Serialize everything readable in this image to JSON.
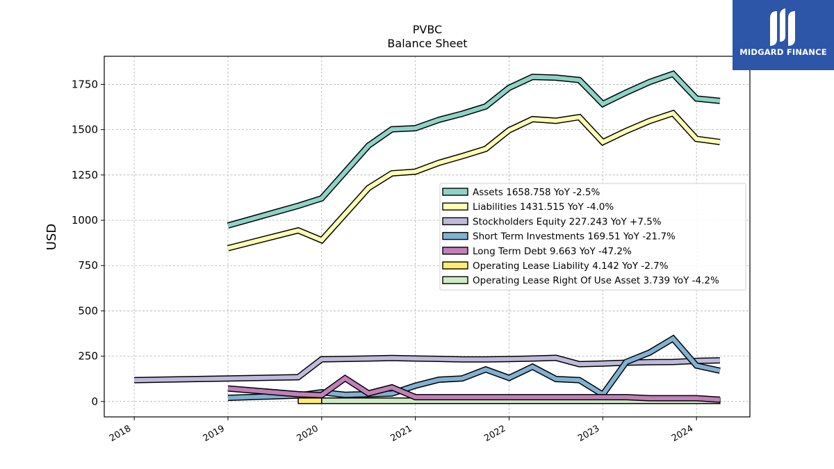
{
  "brand": {
    "name": "MIDGARD FINANCE",
    "logo_icon": "midgard-logo-icon",
    "background": "#2d56a8"
  },
  "chart_data": {
    "type": "line",
    "title": "PVBC",
    "subtitle": "Balance  Sheet",
    "xlabel": "",
    "ylabel": "USD",
    "xlim": [
      2017.68,
      2024.57
    ],
    "ylim": [
      -85,
      1905
    ],
    "xticks": [
      2018,
      2019,
      2020,
      2021,
      2022,
      2023,
      2024
    ],
    "xtick_labels": [
      "2018",
      "2019",
      "2020",
      "2021",
      "2022",
      "2023",
      "2024"
    ],
    "yticks": [
      0,
      250,
      500,
      750,
      1000,
      1250,
      1500,
      1750
    ],
    "ytick_labels": [
      "0",
      "250",
      "500",
      "750",
      "1000",
      "1250",
      "1500",
      "1750"
    ],
    "grid": true,
    "legend_position": "center-right",
    "series": [
      {
        "name": "Assets",
        "legend": "Assets  1658.758 YoY -2.5%",
        "color": "#8dd3c7",
        "x": [
          2019.0,
          2019.75,
          2020.0,
          2020.5,
          2020.75,
          2021.0,
          2021.25,
          2021.5,
          2021.75,
          2022.0,
          2022.25,
          2022.5,
          2022.75,
          2023.0,
          2023.25,
          2023.5,
          2023.75,
          2024.0,
          2024.25
        ],
        "y": [
          971,
          1080,
          1121,
          1412,
          1502,
          1508,
          1554,
          1588,
          1628,
          1731,
          1791,
          1787,
          1774,
          1642,
          1705,
          1763,
          1808,
          1672,
          1659
        ]
      },
      {
        "name": "Liabilities",
        "legend": "Liabilities  1431.515 YoY -4.0%",
        "color": "#ffffb3",
        "x": [
          2019.0,
          2019.75,
          2020.0,
          2020.5,
          2020.75,
          2021.0,
          2021.25,
          2021.5,
          2021.75,
          2022.0,
          2022.25,
          2022.5,
          2022.75,
          2023.0,
          2023.25,
          2023.5,
          2023.75,
          2024.0,
          2024.25
        ],
        "y": [
          846,
          944,
          890,
          1178,
          1259,
          1268,
          1317,
          1354,
          1394,
          1497,
          1558,
          1549,
          1569,
          1431,
          1493,
          1548,
          1591,
          1449,
          1432
        ]
      },
      {
        "name": "Stockholders Equity",
        "legend": "Stockholders Equity  227.243 YoY +7.5%",
        "color": "#bebada",
        "x": [
          2018.0,
          2019.0,
          2019.75,
          2020.0,
          2020.5,
          2020.75,
          2021.0,
          2021.25,
          2021.5,
          2021.75,
          2022.0,
          2022.25,
          2022.5,
          2022.75,
          2023.0,
          2023.25,
          2023.5,
          2023.75,
          2024.0,
          2024.25
        ],
        "y": [
          118,
          127,
          134,
          233,
          237,
          240,
          237,
          235,
          232,
          232,
          234,
          237,
          241,
          206,
          209,
          214,
          217,
          218,
          224,
          227
        ]
      },
      {
        "name": "Short Term Investments",
        "legend": "Short Term Investments  169.51 YoY -21.7%",
        "color": "#80b1d3",
        "x": [
          2019.0,
          2019.75,
          2020.0,
          2020.25,
          2020.5,
          2020.75,
          2021.0,
          2021.25,
          2021.5,
          2021.75,
          2022.0,
          2022.25,
          2022.5,
          2022.75,
          2023.0,
          2023.25,
          2023.5,
          2023.75,
          2024.0,
          2024.25
        ],
        "y": [
          20,
          33,
          51,
          37,
          40,
          44,
          87,
          120,
          127,
          177,
          130,
          192,
          124,
          118,
          38,
          218,
          270,
          347,
          198,
          170
        ]
      },
      {
        "name": "Long Term Debt",
        "legend": "Long Term Debt  9.663 YoY -47.2%",
        "color": "#c27fb9",
        "x": [
          2019.0,
          2019.75,
          2020.0,
          2020.25,
          2020.5,
          2020.75,
          2021.0,
          2021.25,
          2021.5,
          2021.75,
          2022.0,
          2022.25,
          2022.5,
          2022.75,
          2023.0,
          2023.25,
          2023.5,
          2023.75,
          2024.0,
          2024.25
        ],
        "y": [
          72,
          40,
          35,
          128,
          45,
          78,
          24,
          24,
          24,
          24,
          24,
          24,
          24,
          24,
          24,
          24,
          18,
          18,
          18,
          10
        ]
      },
      {
        "name": "Operating Lease Liability",
        "legend": "Operating Lease Liability  4.142 YoY -2.7%",
        "color": "#ffed6f",
        "x": [
          2019.75,
          2020.0
        ],
        "y": [
          4,
          4
        ],
        "band_height": 30
      },
      {
        "name": "Operating Lease Right Of Use Asset",
        "legend": "Operating Lease Right Of Use Asset  3.739 YoY -4.2%",
        "color": "#ccebc5",
        "x": [
          2020.0,
          2024.25
        ],
        "y": [
          4,
          4
        ],
        "band_height": 30
      }
    ]
  }
}
